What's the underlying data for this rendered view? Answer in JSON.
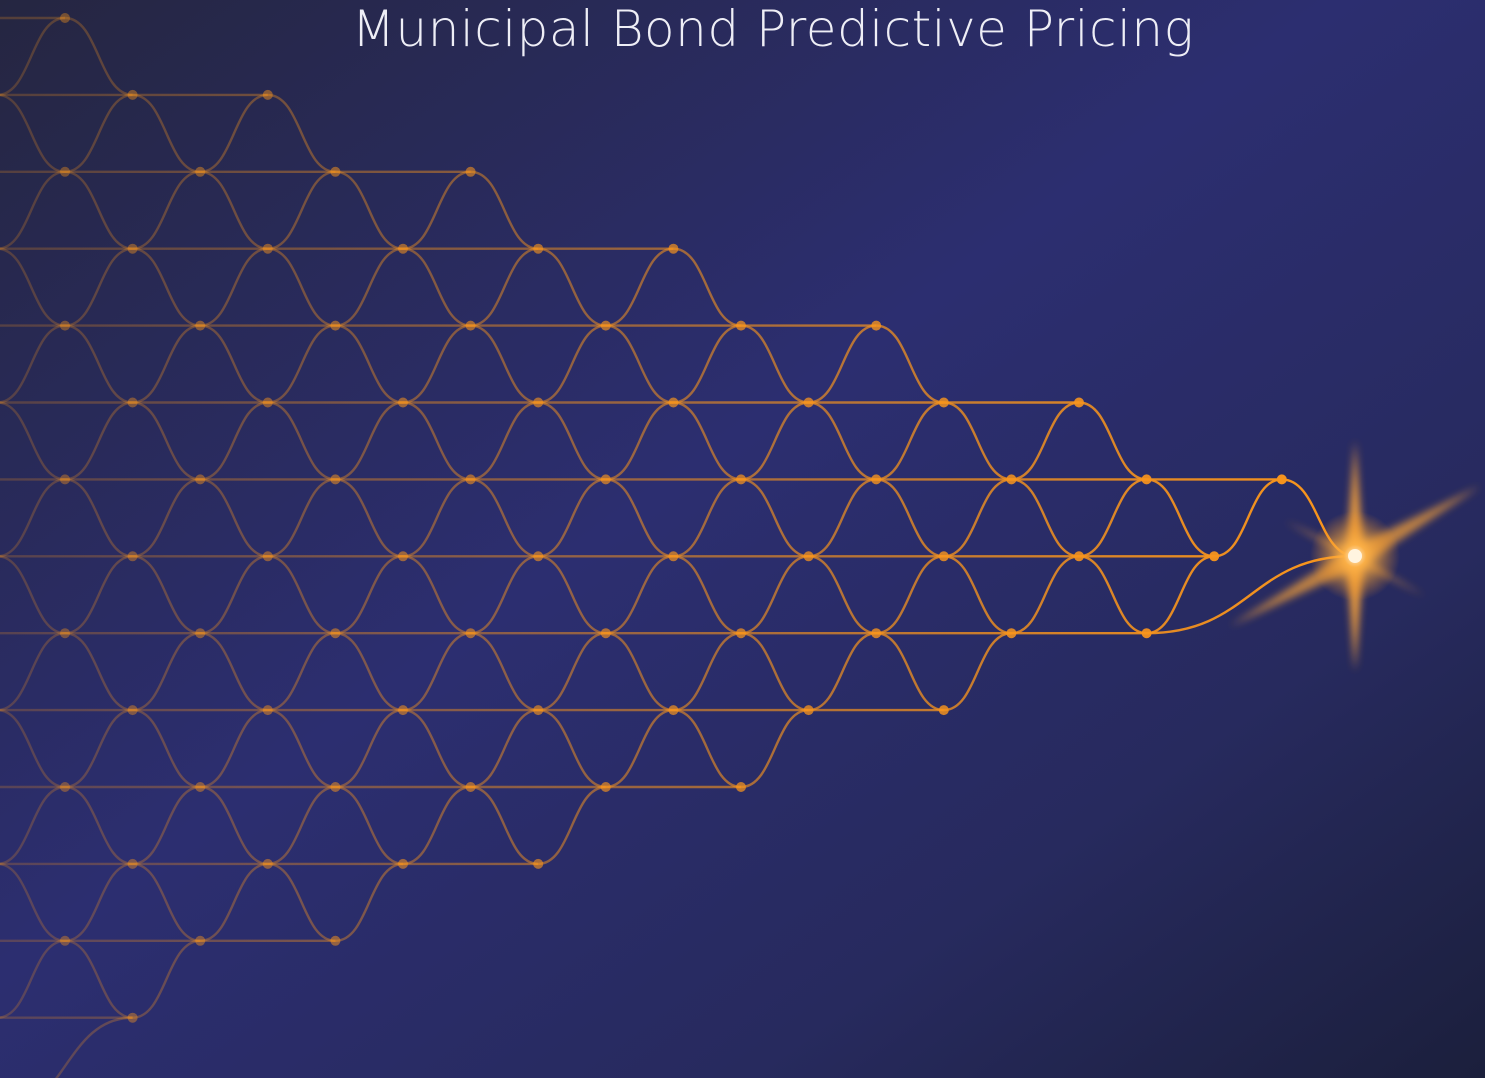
{
  "title": "Municipal Bond Predictive Pricing"
}
